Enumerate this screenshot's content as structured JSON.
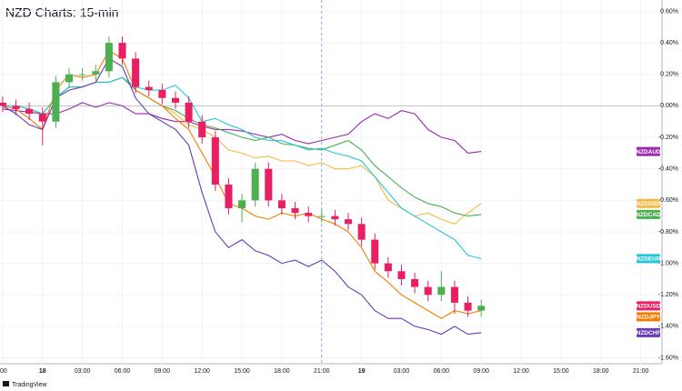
{
  "chart_data": {
    "type": "candlestick",
    "title": "NZD Charts: 15-min",
    "source": "TradingView",
    "x": [
      -3,
      -2,
      -1,
      0,
      1,
      2,
      3,
      4,
      5,
      6,
      7,
      8,
      9,
      10,
      11,
      12,
      13,
      14,
      15,
      16,
      17,
      18,
      19,
      20,
      21,
      22,
      23,
      24,
      25,
      26,
      27,
      28,
      29,
      30,
      31,
      32,
      33
    ],
    "xlim": [
      -3.2,
      46.6
    ],
    "xticks": [
      {
        "value": -3,
        "label": ":00"
      },
      {
        "value": 0,
        "label": "18"
      },
      {
        "value": 3,
        "label": "03:00"
      },
      {
        "value": 6,
        "label": "06:00"
      },
      {
        "value": 9,
        "label": "09:00"
      },
      {
        "value": 12,
        "label": "12:00"
      },
      {
        "value": 15,
        "label": "15:00"
      },
      {
        "value": 18,
        "label": "18:00"
      },
      {
        "value": 21,
        "label": "21:00"
      },
      {
        "value": 24,
        "label": "19"
      },
      {
        "value": 27,
        "label": "03:00"
      },
      {
        "value": 30,
        "label": "06:00"
      },
      {
        "value": 33,
        "label": "09:00"
      },
      {
        "value": 36,
        "label": "12:00"
      },
      {
        "value": 39,
        "label": "15:00"
      },
      {
        "value": 42,
        "label": "18:00"
      },
      {
        "value": 45,
        "label": "21:00"
      }
    ],
    "ylim": [
      -1.62,
      0.62
    ],
    "yticks": [
      {
        "value": 0.6,
        "label": "0.60%"
      },
      {
        "value": 0.4,
        "label": "0.40%"
      },
      {
        "value": 0.2,
        "label": "0.20%"
      },
      {
        "value": 0,
        "label": "0.00%"
      },
      {
        "value": -0.2,
        "label": "-0.20%"
      },
      {
        "value": -0.4,
        "label": "-0.40%"
      },
      {
        "value": -0.6,
        "label": "-0.60%"
      },
      {
        "value": -0.8,
        "label": "-0.80%"
      },
      {
        "value": -1.0,
        "label": "-1.00%"
      },
      {
        "value": -1.2,
        "label": "-1.20%"
      },
      {
        "value": -1.4,
        "label": "-1.40%"
      },
      {
        "value": -1.6,
        "label": "-1.60%"
      }
    ],
    "baseline": 0,
    "session_break": 21,
    "grid": true,
    "candles": {
      "name": "NZDUSD",
      "color": "#e91e63",
      "up_color": "#4caf50",
      "down_color": "#e91e63",
      "open": [
        0.02,
        0.0,
        -0.02,
        -0.05,
        -0.1,
        0.15,
        0.2,
        0.2,
        0.22,
        0.4,
        0.3,
        0.12,
        0.1,
        0.05,
        0.02,
        -0.1,
        -0.2,
        -0.5,
        -0.65,
        -0.6,
        -0.4,
        -0.6,
        -0.65,
        -0.68,
        -0.7,
        -0.7,
        -0.72,
        -0.75,
        -0.85,
        -1.0,
        -1.05,
        -1.1,
        -1.15,
        -1.2,
        -1.15,
        -1.25,
        -1.3
      ],
      "high": [
        0.06,
        0.04,
        0.02,
        -0.01,
        0.19,
        0.24,
        0.24,
        0.26,
        0.44,
        0.44,
        0.34,
        0.16,
        0.14,
        0.09,
        0.06,
        -0.06,
        -0.16,
        -0.46,
        -0.56,
        -0.36,
        -0.36,
        -0.56,
        -0.61,
        -0.64,
        -0.66,
        -0.66,
        -0.68,
        -0.71,
        -0.81,
        -0.96,
        -1.01,
        -1.06,
        -1.11,
        -1.05,
        -1.11,
        -1.21,
        -1.23
      ],
      "low": [
        -0.04,
        -0.06,
        -0.09,
        -0.25,
        -0.14,
        0.11,
        0.16,
        0.16,
        0.18,
        0.26,
        0.08,
        0.06,
        0.01,
        -0.02,
        -0.14,
        -0.24,
        -0.54,
        -0.69,
        -0.74,
        -0.64,
        -0.64,
        -0.69,
        -0.72,
        -0.74,
        -0.74,
        -0.76,
        -0.79,
        -0.89,
        -1.04,
        -1.09,
        -1.14,
        -1.19,
        -1.24,
        -1.24,
        -1.32,
        -1.34,
        -1.34
      ],
      "close": [
        0.0,
        -0.02,
        -0.05,
        -0.1,
        0.15,
        0.2,
        0.2,
        0.22,
        0.4,
        0.3,
        0.12,
        0.1,
        0.05,
        0.02,
        -0.1,
        -0.2,
        -0.5,
        -0.65,
        -0.6,
        -0.4,
        -0.6,
        -0.65,
        -0.68,
        -0.7,
        -0.7,
        -0.72,
        -0.75,
        -0.85,
        -1.0,
        -1.05,
        -1.1,
        -1.15,
        -1.2,
        -1.15,
        -1.25,
        -1.3,
        -1.27
      ]
    },
    "series": [
      {
        "name": "NZDAUD",
        "color": "#9c27b0",
        "values": [
          -0.02,
          -0.03,
          -0.04,
          -0.05,
          -0.05,
          -0.02,
          0.02,
          -0.01,
          0.02,
          0.0,
          -0.05,
          -0.05,
          -0.08,
          -0.1,
          -0.1,
          -0.13,
          -0.15,
          -0.15,
          -0.16,
          -0.18,
          -0.2,
          -0.18,
          -0.22,
          -0.24,
          -0.22,
          -0.2,
          -0.18,
          -0.1,
          -0.05,
          -0.08,
          -0.03,
          -0.05,
          -0.15,
          -0.2,
          -0.22,
          -0.3,
          -0.29
        ]
      },
      {
        "name": "NZDGBP",
        "color": "#f5b942",
        "values": [
          0,
          0,
          -0.02,
          -0.05,
          0.05,
          0.12,
          0.12,
          0.15,
          0.15,
          0.18,
          0.1,
          0.05,
          0.0,
          -0.05,
          -0.12,
          -0.15,
          -0.2,
          -0.28,
          -0.3,
          -0.33,
          -0.32,
          -0.35,
          -0.35,
          -0.38,
          -0.36,
          -0.4,
          -0.4,
          -0.38,
          -0.45,
          -0.6,
          -0.65,
          -0.7,
          -0.68,
          -0.72,
          -0.75,
          -0.68,
          -0.62
        ]
      },
      {
        "name": "NZDCAD",
        "color": "#4caf50",
        "values": [
          0,
          0,
          -0.02,
          -0.05,
          0.05,
          0.12,
          0.12,
          0.15,
          0.15,
          0.18,
          0.1,
          0.05,
          0.0,
          -0.03,
          -0.08,
          -0.12,
          -0.14,
          -0.17,
          -0.2,
          -0.22,
          -0.2,
          -0.24,
          -0.25,
          -0.27,
          -0.28,
          -0.25,
          -0.22,
          -0.28,
          -0.38,
          -0.45,
          -0.52,
          -0.58,
          -0.62,
          -0.64,
          -0.68,
          -0.7,
          -0.69
        ]
      },
      {
        "name": "NZDEUR",
        "color": "#26c6da",
        "values": [
          0,
          0,
          -0.02,
          -0.05,
          0.05,
          0.12,
          0.12,
          0.15,
          0.15,
          0.18,
          0.12,
          0.1,
          0.1,
          0.13,
          0.05,
          -0.1,
          -0.08,
          -0.12,
          -0.15,
          -0.2,
          -0.22,
          -0.22,
          -0.25,
          -0.28,
          -0.27,
          -0.3,
          -0.32,
          -0.35,
          -0.45,
          -0.55,
          -0.65,
          -0.7,
          -0.75,
          -0.8,
          -0.85,
          -0.95,
          -0.97
        ]
      },
      {
        "name": "NZDJPY",
        "color": "#f57c00",
        "values": [
          0.0,
          -0.02,
          -0.08,
          -0.15,
          0.1,
          0.2,
          0.18,
          0.2,
          0.35,
          0.3,
          0.1,
          0.05,
          0.0,
          -0.08,
          -0.15,
          -0.3,
          -0.45,
          -0.62,
          -0.65,
          -0.7,
          -0.72,
          -0.68,
          -0.7,
          -0.68,
          -0.72,
          -0.75,
          -0.8,
          -0.9,
          -1.05,
          -1.12,
          -1.2,
          -1.25,
          -1.3,
          -1.35,
          -1.3,
          -1.32,
          -1.3
        ]
      },
      {
        "name": "NZDCHF",
        "color": "#673ab7",
        "values": [
          0,
          -0.05,
          -0.12,
          -0.15,
          0.05,
          0.1,
          0.12,
          0.15,
          0.3,
          0.25,
          0.05,
          -0.05,
          -0.1,
          -0.15,
          -0.25,
          -0.55,
          -0.8,
          -0.9,
          -0.85,
          -0.92,
          -0.95,
          -1.0,
          -0.98,
          -1.02,
          -0.98,
          -1.05,
          -1.15,
          -1.2,
          -1.3,
          -1.35,
          -1.35,
          -1.4,
          -1.42,
          -1.45,
          -1.4,
          -1.45,
          -1.44
        ]
      }
    ]
  }
}
